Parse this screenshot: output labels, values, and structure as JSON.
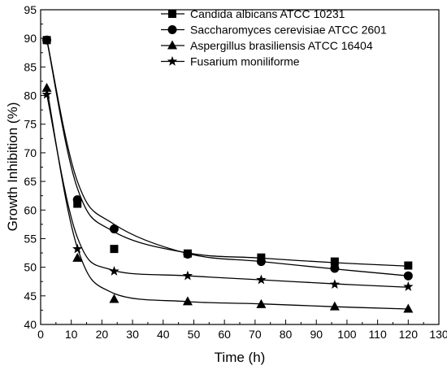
{
  "chart_data": {
    "type": "scatter",
    "xlabel": "Time (h)",
    "ylabel": "Growth Inhibition (%)",
    "xlim": [
      0,
      130
    ],
    "ylim": [
      40,
      95
    ],
    "x_ticks": [
      0,
      10,
      20,
      30,
      40,
      50,
      60,
      70,
      80,
      90,
      100,
      110,
      120,
      130
    ],
    "y_ticks": [
      40,
      45,
      50,
      55,
      60,
      65,
      70,
      75,
      80,
      85,
      90,
      95
    ],
    "grid": false,
    "legend_position": "top-right",
    "fit_curves": true,
    "x": [
      2,
      12,
      24,
      48,
      72,
      96,
      120
    ],
    "series": [
      {
        "name": "Candida albicans ATCC 10231",
        "marker": "square",
        "values": [
          89.7,
          61.1,
          53.2,
          52.4,
          51.7,
          51.0,
          50.3
        ],
        "curve": [
          89.8,
          63.8,
          56.2,
          52.5,
          51.6,
          50.8,
          50.2
        ]
      },
      {
        "name": "Saccharomyces cerevisiae ATCC 2601",
        "marker": "circle",
        "values": [
          89.7,
          61.8,
          56.7,
          52.3,
          51.0,
          49.8,
          48.5
        ],
        "curve": [
          89.9,
          65.0,
          57.5,
          52.4,
          51.0,
          49.7,
          48.5
        ]
      },
      {
        "name": "Aspergillus brasiliensis ATCC 16404",
        "marker": "triangle",
        "values": [
          81.3,
          51.6,
          44.4,
          44.0,
          43.5,
          43.1,
          42.7
        ],
        "curve": [
          81.3,
          53.4,
          45.4,
          44.0,
          43.6,
          43.1,
          42.7
        ]
      },
      {
        "name": "Fusarium moniliforme",
        "marker": "star",
        "values": [
          80.2,
          53.2,
          49.3,
          48.5,
          47.8,
          47.0,
          46.6
        ],
        "curve": [
          80.2,
          55.2,
          49.4,
          48.5,
          47.8,
          47.1,
          46.5
        ]
      }
    ]
  }
}
